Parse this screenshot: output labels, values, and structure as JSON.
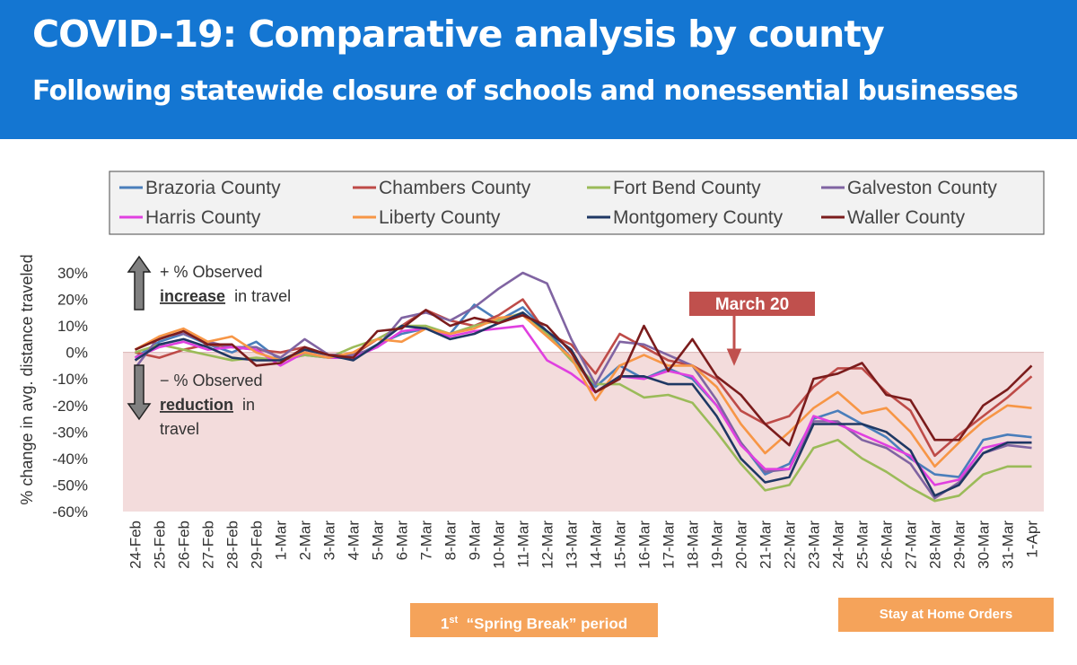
{
  "header": {
    "title": "COVID-19: Comparative analysis by county",
    "subtitle": "Following statewide closure of schools and nonessential businesses"
  },
  "colors": {
    "banner": "#1476d2",
    "reduction_band": "#f3dcdc",
    "march20_box": "#c0504d",
    "period_box": "#f5a35a"
  },
  "annotations": {
    "increase_prefix": "+ % Observed",
    "increase_word": "increase",
    "increase_suffix": "in travel",
    "reduction_prefix": "− % Observed",
    "reduction_word": "reduction",
    "reduction_suffix": "in",
    "reduction_line3": "travel",
    "march20": "March 20",
    "spring_break_sup": "st",
    "spring_break_num": "1",
    "spring_break_text": "“Spring Break” period",
    "stay_home": "Stay at Home Orders"
  },
  "chart_data": {
    "type": "line",
    "ylabel": "% change in avg. distance traveled",
    "ylim": [
      -60,
      30
    ],
    "yticks": [
      "30%",
      "20%",
      "10%",
      "0%",
      "-10%",
      "-20%",
      "-30%",
      "-40%",
      "-50%",
      "-60%"
    ],
    "ytick_values": [
      30,
      20,
      10,
      0,
      -10,
      -20,
      -30,
      -40,
      -50,
      -60
    ],
    "legend_placement": "top",
    "x": [
      "24-Feb",
      "25-Feb",
      "26-Feb",
      "27-Feb",
      "28-Feb",
      "29-Feb",
      "1-Mar",
      "2-Mar",
      "3-Mar",
      "4-Mar",
      "5-Mar",
      "6-Mar",
      "7-Mar",
      "8-Mar",
      "9-Mar",
      "10-Mar",
      "11-Mar",
      "12-Mar",
      "13-Mar",
      "14-Mar",
      "15-Mar",
      "16-Mar",
      "17-Mar",
      "18-Mar",
      "19-Mar",
      "20-Mar",
      "21-Mar",
      "22-Mar",
      "23-Mar",
      "24-Mar",
      "25-Mar",
      "26-Mar",
      "27-Mar",
      "28-Mar",
      "29-Mar",
      "30-Mar",
      "31-Mar",
      "1-Apr"
    ],
    "series": [
      {
        "name": "Brazoria County",
        "color": "#4a7ebb",
        "values": [
          -2,
          4,
          7,
          3,
          0,
          4,
          -3,
          -1,
          -2,
          -2,
          3,
          7,
          9,
          7,
          18,
          12,
          17,
          8,
          -2,
          -13,
          -5,
          -10,
          -6,
          -10,
          -20,
          -34,
          -46,
          -42,
          -25,
          -22,
          -27,
          -32,
          -40,
          -46,
          -47,
          -33,
          -31,
          -32
        ]
      },
      {
        "name": "Chambers County",
        "color": "#be4b48",
        "values": [
          0,
          -2,
          1,
          3,
          2,
          1,
          0,
          2,
          -1,
          -1,
          5,
          10,
          16,
          12,
          10,
          14,
          20,
          7,
          3,
          -8,
          7,
          2,
          -3,
          -5,
          -10,
          -22,
          -27,
          -24,
          -13,
          -6,
          -6,
          -15,
          -22,
          -39,
          -31,
          -24,
          -17,
          -9
        ]
      },
      {
        "name": "Fort Bend County",
        "color": "#9bbb59",
        "values": [
          0,
          3,
          1,
          -1,
          -3,
          -2,
          -3,
          -1,
          -2,
          2,
          5,
          10,
          10,
          7,
          10,
          12,
          15,
          7,
          -3,
          -12,
          -12,
          -17,
          -16,
          -19,
          -30,
          -42,
          -52,
          -50,
          -36,
          -33,
          -40,
          -45,
          -51,
          -56,
          -54,
          -46,
          -43,
          -43
        ]
      },
      {
        "name": "Galveston County",
        "color": "#8064a2",
        "values": [
          -6,
          6,
          7,
          4,
          2,
          2,
          -2,
          5,
          -1,
          -1,
          2,
          13,
          15,
          12,
          17,
          24,
          30,
          26,
          5,
          -12,
          4,
          3,
          -1,
          -5,
          -18,
          -34,
          -45,
          -44,
          -26,
          -26,
          -33,
          -36,
          -42,
          -55,
          -49,
          -38,
          -35,
          -36
        ]
      },
      {
        "name": "Harris County",
        "color": "#e040e0",
        "values": [
          -2,
          2,
          4,
          1,
          2,
          1,
          -5,
          0,
          -2,
          -2,
          2,
          8,
          9,
          6,
          8,
          9,
          10,
          -3,
          -8,
          -15,
          -9,
          -10,
          -7,
          -9,
          -20,
          -35,
          -44,
          -44,
          -24,
          -27,
          -31,
          -35,
          -39,
          -50,
          -48,
          -36,
          -34,
          -34
        ]
      },
      {
        "name": "Liberty County",
        "color": "#f79646",
        "values": [
          1,
          6,
          9,
          4,
          6,
          0,
          -3,
          0,
          -2,
          0,
          5,
          4,
          9,
          7,
          9,
          13,
          14,
          6,
          -2,
          -18,
          -5,
          -1,
          -5,
          -5,
          -13,
          -27,
          -38,
          -30,
          -21,
          -15,
          -23,
          -21,
          -30,
          -43,
          -34,
          -26,
          -20,
          -21
        ]
      },
      {
        "name": "Montgomery County",
        "color": "#1f3864",
        "values": [
          -3,
          3,
          5,
          2,
          -2,
          -3,
          -3,
          1,
          -1,
          -3,
          3,
          10,
          9,
          5,
          7,
          11,
          15,
          8,
          1,
          -15,
          -9,
          -9,
          -12,
          -12,
          -24,
          -40,
          -49,
          -47,
          -27,
          -27,
          -27,
          -30,
          -37,
          -54,
          -50,
          -38,
          -34,
          -34
        ]
      },
      {
        "name": "Waller County",
        "color": "#7b1c1c",
        "values": [
          1,
          5,
          8,
          3,
          3,
          -5,
          -4,
          2,
          -1,
          -2,
          8,
          9,
          16,
          10,
          13,
          11,
          14,
          10,
          0,
          -15,
          -10,
          10,
          -7,
          5,
          -9,
          -16,
          -27,
          -35,
          -10,
          -8,
          -4,
          -16,
          -18,
          -33,
          -33,
          -20,
          -14,
          -5
        ]
      }
    ]
  }
}
